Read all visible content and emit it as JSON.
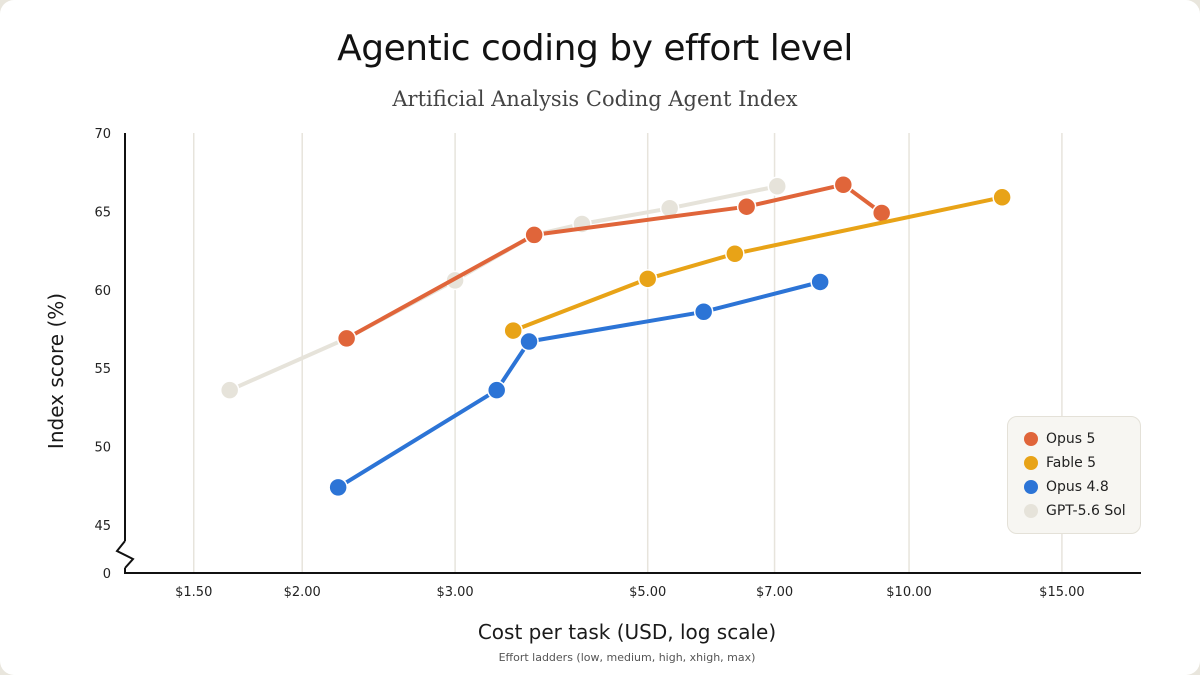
{
  "title": "Agentic coding by effort level",
  "subtitle": "Artificial Analysis Coding Agent Index",
  "chart_data": {
    "type": "line",
    "title": "Agentic coding by effort level",
    "subtitle": "Artificial Analysis Coding Agent Index",
    "xlabel": "Cost per task (USD, log scale)",
    "xnote": "Effort ladders (low, medium, high, xhigh, max)",
    "ylabel": "Index score (%)",
    "xscale": "log",
    "xlim": [
      1.25,
      18.5
    ],
    "ylim": [
      45,
      70
    ],
    "y_axis_break": true,
    "y_axis_floor_label": "0",
    "x_ticks": [
      {
        "value": 1.5,
        "label": "$1.50"
      },
      {
        "value": 2.0,
        "label": "$2.00"
      },
      {
        "value": 3.0,
        "label": "$3.00"
      },
      {
        "value": 5.0,
        "label": "$5.00"
      },
      {
        "value": 7.0,
        "label": "$7.00"
      },
      {
        "value": 10.0,
        "label": "$10.00"
      },
      {
        "value": 15.0,
        "label": "$15.00"
      }
    ],
    "y_ticks": [
      {
        "value": 45,
        "label": "45"
      },
      {
        "value": 50,
        "label": "50"
      },
      {
        "value": 55,
        "label": "55"
      },
      {
        "value": 60,
        "label": "60"
      },
      {
        "value": 65,
        "label": "65"
      },
      {
        "value": 70,
        "label": "70"
      }
    ],
    "grid": "vertical",
    "legend_position": "bottom-right",
    "series": [
      {
        "name": "GPT-5.6 Sol",
        "color": "#e6e3da",
        "points": [
          [
            1.65,
            53.6
          ],
          [
            2.25,
            56.9
          ],
          [
            3.0,
            60.6
          ],
          [
            3.7,
            63.5
          ],
          [
            4.2,
            64.2
          ],
          [
            5.3,
            65.2
          ],
          [
            7.05,
            66.6
          ]
        ]
      },
      {
        "name": "Opus 5",
        "color": "#e0653a",
        "points": [
          [
            2.25,
            56.9
          ],
          [
            3.7,
            63.5
          ],
          [
            6.5,
            65.3
          ],
          [
            8.4,
            66.7
          ],
          [
            9.3,
            64.9
          ]
        ]
      },
      {
        "name": "Fable 5",
        "color": "#e8a317",
        "points": [
          [
            3.5,
            57.4
          ],
          [
            5.0,
            60.7
          ],
          [
            6.3,
            62.3
          ],
          [
            12.8,
            65.9
          ]
        ]
      },
      {
        "name": "Opus 4.8",
        "color": "#2c74d6",
        "points": [
          [
            2.2,
            47.4
          ],
          [
            3.35,
            53.6
          ],
          [
            3.65,
            56.7
          ],
          [
            5.8,
            58.6
          ],
          [
            7.9,
            60.5
          ]
        ]
      }
    ],
    "legend": [
      {
        "name": "Opus 5",
        "color": "#e0653a"
      },
      {
        "name": "Fable 5",
        "color": "#e8a317"
      },
      {
        "name": "Opus 4.8",
        "color": "#2c74d6"
      },
      {
        "name": "GPT-5.6 Sol",
        "color": "#e6e3da"
      }
    ]
  }
}
